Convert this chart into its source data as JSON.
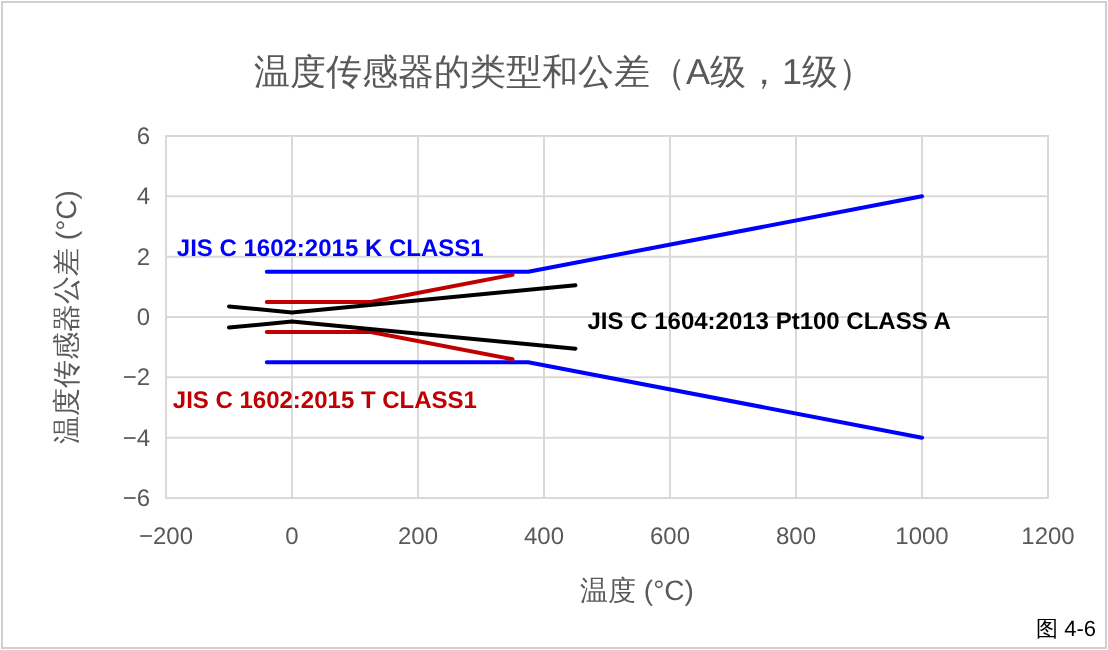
{
  "chart_data": {
    "type": "line",
    "title": "温度传感器的类型和公差（A级，1级）",
    "xlabel": "温度 (°C)",
    "ylabel": "温度传感器公差 (°C)",
    "series": [
      {
        "name": "JIS C 1602:2015 K CLASS1",
        "color": "#0000ff",
        "x": [
          -40,
          375,
          1000
        ],
        "values": [
          1.5,
          1.5,
          4
        ]
      },
      {
        "color": "#0000ff",
        "x": [
          -40,
          375,
          1000
        ],
        "values": [
          -1.5,
          -1.5,
          -4
        ]
      },
      {
        "color": "#c00000",
        "x": [
          -40,
          125,
          350
        ],
        "values": [
          0.5,
          0.5,
          1.4
        ]
      },
      {
        "name": "JIS C 1602:2015 T CLASS1",
        "color": "#c00000",
        "x": [
          -40,
          125,
          350
        ],
        "values": [
          -0.5,
          -0.5,
          -1.4
        ]
      },
      {
        "color": "#000000",
        "x": [
          -100,
          0,
          450
        ],
        "values": [
          0.35,
          0.15,
          1.05
        ]
      },
      {
        "name": "JIS C 1604:2013 Pt100 CLASS A",
        "color": "#000000",
        "x": [
          -100,
          0,
          450
        ],
        "values": [
          -0.35,
          -0.15,
          -1.05
        ]
      }
    ],
    "xlim": [
      -200,
      1200
    ],
    "xticks": [
      {
        "value": -200,
        "label": "−200"
      },
      0,
      200,
      400,
      600,
      800,
      1000,
      1200
    ],
    "ylim": [
      -6,
      6
    ],
    "yticks": [
      {
        "value": -6,
        "label": "−6"
      },
      {
        "value": -4,
        "label": "−4"
      },
      {
        "value": -2,
        "label": "−2"
      },
      0,
      2,
      4,
      6
    ],
    "grid": true,
    "marker": "none",
    "line_style": "solid",
    "annotations": [
      "图 4-6"
    ]
  }
}
